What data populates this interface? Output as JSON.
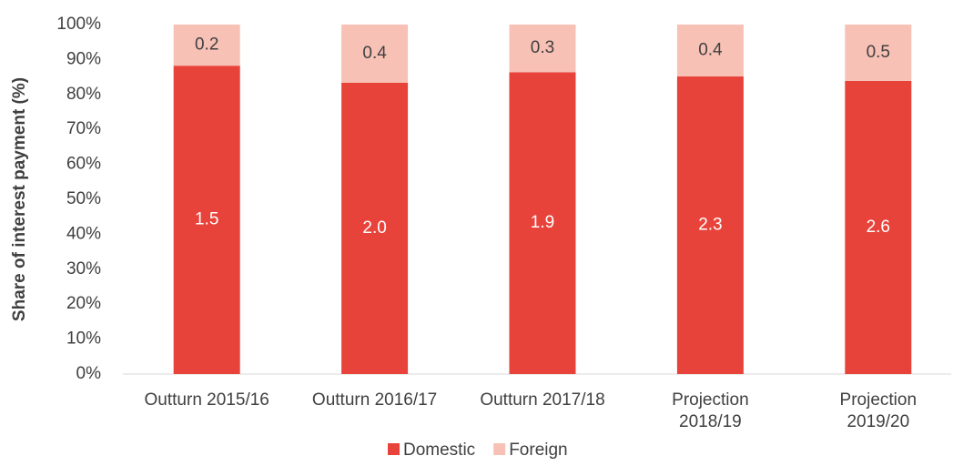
{
  "chart_data": {
    "type": "bar",
    "stack": "percent",
    "y_label": "Share of interest payment (%)",
    "categories": [
      "Outturn 2015/16",
      "Outturn 2016/17",
      "Outturn 2017/18",
      "Projection 2018/19",
      "Projection 2019/20"
    ],
    "series": [
      {
        "name": "Domestic",
        "color": "#e8433a",
        "label_color": "#ffffff",
        "values": [
          1.5,
          2.0,
          1.9,
          2.3,
          2.6
        ],
        "value_labels": [
          "1.5",
          "2.0",
          "1.9",
          "2.3",
          "2.6"
        ]
      },
      {
        "name": "Foreign",
        "color": "#f8c1b5",
        "label_color": "#404040",
        "values": [
          0.2,
          0.4,
          0.3,
          0.4,
          0.5
        ]
      }
    ],
    "ylim": [
      0,
      100
    ],
    "yticks": [
      {
        "value": 0,
        "label": "0%"
      },
      {
        "value": 10,
        "label": "10%"
      },
      {
        "value": 20,
        "label": "20%"
      },
      {
        "value": 30,
        "label": "30%"
      },
      {
        "value": 40,
        "label": "40%"
      },
      {
        "value": 50,
        "label": "50%"
      },
      {
        "value": 60,
        "label": "60%"
      },
      {
        "value": 70,
        "label": "70%"
      },
      {
        "value": 80,
        "label": "80%"
      },
      {
        "value": 90,
        "label": "90%"
      },
      {
        "value": 100,
        "label": "100%"
      }
    ],
    "grid": false,
    "legend": "bottom"
  }
}
